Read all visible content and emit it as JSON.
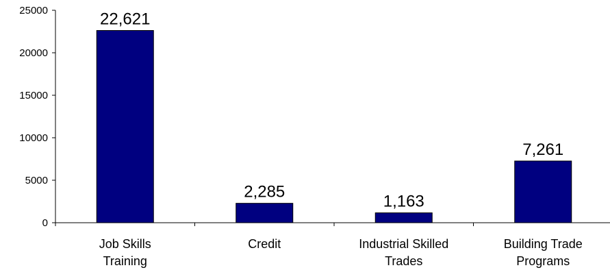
{
  "chart_data": {
    "type": "bar",
    "categories": [
      [
        "Job Skills",
        "Training"
      ],
      [
        "Credit"
      ],
      [
        "Industrial Skilled",
        "Trades"
      ],
      [
        "Building Trade",
        "Programs"
      ]
    ],
    "values": [
      22621,
      2285,
      1163,
      7261
    ],
    "data_labels": [
      "22,621",
      "2,285",
      "1,163",
      "7,261"
    ],
    "yticks": [
      0,
      5000,
      10000,
      15000,
      20000,
      25000
    ],
    "ytick_labels": [
      "0",
      "5000",
      "10000",
      "15000",
      "20000",
      "25000"
    ],
    "ylim": [
      0,
      25000
    ],
    "bar_color": "#000080",
    "grid": false,
    "legend": "none"
  }
}
